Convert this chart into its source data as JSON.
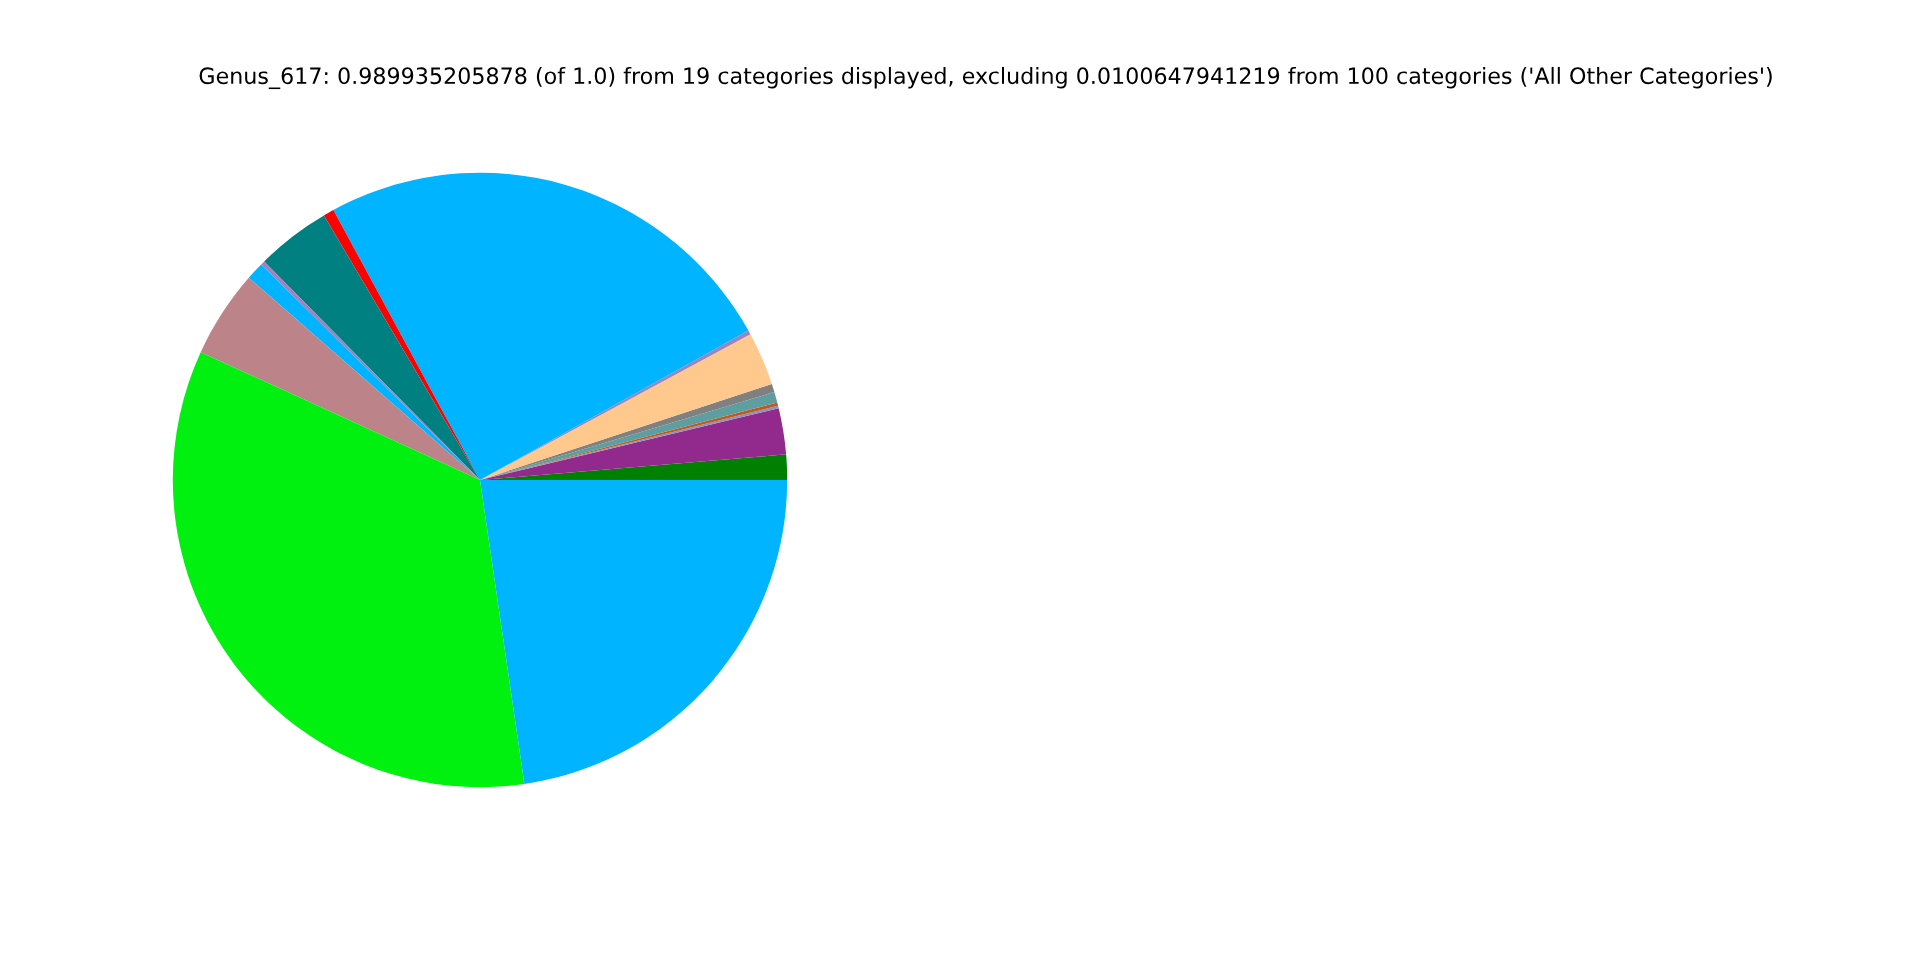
{
  "chart_data": {
    "type": "pie",
    "title": "Genus_617: 0.989935205878 (of 1.0) from 19 categories displayed, excluding 0.0100647941219 from 100 categories ('All Other Categories')",
    "categories": [
      null,
      null,
      null,
      null,
      null,
      null,
      null,
      null,
      null,
      null,
      null,
      null,
      null,
      null,
      null,
      null
    ],
    "values": [
      1.33,
      2.42,
      0.14,
      0.17,
      0.56,
      0.44,
      2.81,
      0.22,
      24.83,
      0.56,
      3.92,
      0.22,
      0.94,
      4.61,
      34.14,
      22.69
    ],
    "colors": [
      "#008000",
      "#912a8c",
      "#9090c0",
      "#c05a1a",
      "#5f9ea0",
      "#808080",
      "#ffc88c",
      "#9a85c0",
      "#00b4ff",
      "#ff0000",
      "#008080",
      "#9a85c0",
      "#00b4ff",
      "#bc8489",
      "#00f010",
      "#00b4ff"
    ]
  }
}
